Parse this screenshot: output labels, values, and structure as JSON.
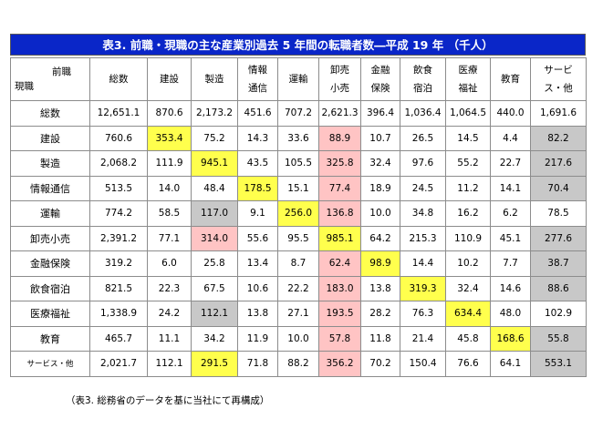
{
  "title": "表3. 前職・現職の主な産業別過去 5 年間の転職者数―平成 19 年 （千人）",
  "corner": {
    "top": "前職",
    "bottom": "現職"
  },
  "columns": [
    [
      "総数"
    ],
    [
      "建設"
    ],
    [
      "製造"
    ],
    [
      "情報",
      "通信"
    ],
    [
      "運輸"
    ],
    [
      "卸売",
      "小売"
    ],
    [
      "金融",
      "保険"
    ],
    [
      "飲食",
      "宿泊"
    ],
    [
      "医療",
      "福祉"
    ],
    [
      "教育"
    ],
    [
      "サービ",
      "ス・他"
    ]
  ],
  "rows": [
    {
      "label": "総数",
      "values": [
        "12,651.1",
        "870.6",
        "2,173.2",
        "451.6",
        "707.2",
        "2,621.3",
        "396.4",
        "1,036.4",
        "1,064.5",
        "440.0",
        "1,691.6"
      ]
    },
    {
      "label": "建設",
      "values": [
        "760.6",
        "353.4",
        "75.2",
        "14.3",
        "33.6",
        "88.9",
        "10.7",
        "26.5",
        "14.5",
        "4.4",
        "82.2"
      ]
    },
    {
      "label": "製造",
      "values": [
        "2,068.2",
        "111.9",
        "945.1",
        "43.5",
        "105.5",
        "325.8",
        "32.4",
        "97.6",
        "55.2",
        "22.7",
        "217.6"
      ]
    },
    {
      "label": "情報通信",
      "values": [
        "513.5",
        "14.0",
        "48.4",
        "178.5",
        "15.1",
        "77.4",
        "18.9",
        "24.5",
        "11.2",
        "14.1",
        "70.4"
      ]
    },
    {
      "label": "運輸",
      "values": [
        "774.2",
        "58.5",
        "117.0",
        "9.1",
        "256.0",
        "136.8",
        "10.0",
        "34.8",
        "16.2",
        "6.2",
        "78.5"
      ]
    },
    {
      "label": "卸売小売",
      "values": [
        "2,391.2",
        "77.1",
        "314.0",
        "55.6",
        "95.5",
        "985.1",
        "64.2",
        "215.3",
        "110.9",
        "45.1",
        "277.6"
      ]
    },
    {
      "label": "金融保険",
      "values": [
        "319.2",
        "6.0",
        "25.8",
        "13.4",
        "8.7",
        "62.4",
        "98.9",
        "14.4",
        "10.2",
        "7.7",
        "38.7"
      ]
    },
    {
      "label": "飲食宿泊",
      "values": [
        "821.5",
        "22.3",
        "67.5",
        "10.6",
        "22.2",
        "183.0",
        "13.8",
        "319.3",
        "32.4",
        "14.6",
        "88.6"
      ]
    },
    {
      "label": "医療福祉",
      "values": [
        "1,338.9",
        "24.2",
        "112.1",
        "13.8",
        "27.1",
        "193.5",
        "28.2",
        "76.3",
        "634.4",
        "48.0",
        "102.9"
      ]
    },
    {
      "label": "教育",
      "values": [
        "465.7",
        "11.1",
        "34.2",
        "11.9",
        "10.0",
        "57.8",
        "11.8",
        "21.4",
        "45.8",
        "168.6",
        "55.8"
      ]
    },
    {
      "label": "サービス・他",
      "values": [
        "2,021.7",
        "112.1",
        "291.5",
        "71.8",
        "88.2",
        "356.2",
        "70.2",
        "150.4",
        "76.6",
        "64.1",
        "553.1"
      ]
    }
  ],
  "highlight_colors": {
    "yellow": "#ffff4d",
    "pink": "#ffc4c4",
    "gray": "#c8c8c8"
  },
  "highlights": {
    "1": {
      "1": "yellow",
      "5": "pink",
      "10": "gray"
    },
    "2": {
      "2": "yellow",
      "5": "pink",
      "10": "gray"
    },
    "3": {
      "3": "yellow",
      "5": "pink",
      "10": "gray"
    },
    "4": {
      "2": "gray",
      "4": "yellow",
      "5": "pink"
    },
    "5": {
      "2": "pink",
      "5": "yellow",
      "10": "gray"
    },
    "6": {
      "5": "pink",
      "6": "yellow",
      "10": "gray"
    },
    "7": {
      "5": "pink",
      "7": "yellow",
      "10": "gray"
    },
    "8": {
      "2": "gray",
      "5": "pink",
      "8": "yellow"
    },
    "9": {
      "5": "pink",
      "9": "yellow",
      "10": "gray"
    },
    "10": {
      "2": "yellow",
      "5": "pink",
      "10": "gray"
    }
  },
  "note": "（表3. 総務省のデータを基に当社にて再構成）"
}
